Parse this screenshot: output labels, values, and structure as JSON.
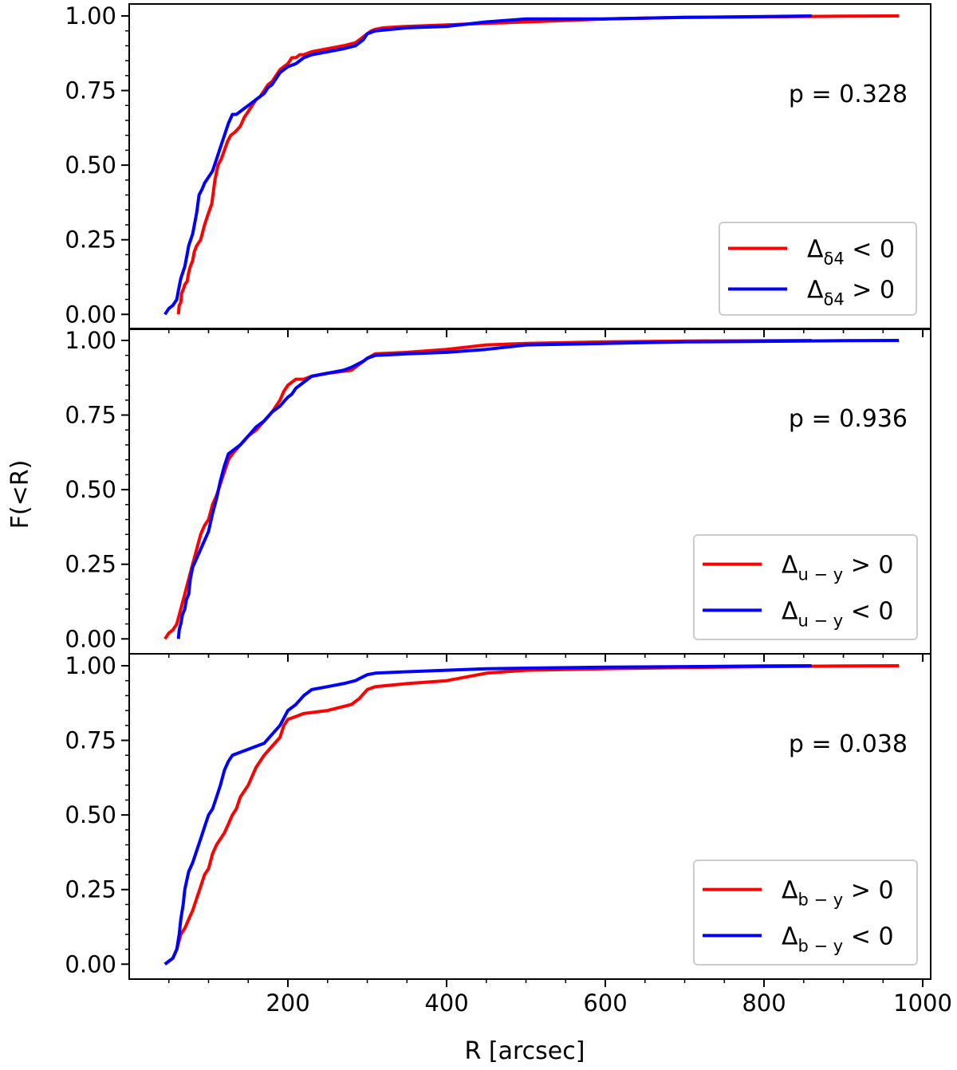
{
  "chart_data": {
    "type": "line",
    "subtype": "cumulative-distribution",
    "xlabel": "R [arcsec]",
    "ylabel": "F(<R)",
    "xlim": [
      0,
      1010
    ],
    "ylim": [
      -0.05,
      1.04
    ],
    "xticks": [
      200,
      400,
      600,
      800,
      1000
    ],
    "xtick_labels": [
      "200",
      "400",
      "600",
      "800",
      "1000"
    ],
    "yticks": [
      0.0,
      0.25,
      0.5,
      0.75,
      1.0
    ],
    "ytick_labels": [
      "0.00",
      "0.25",
      "0.50",
      "0.75",
      "1.00"
    ],
    "panels": [
      {
        "annotation": "p = 0.328",
        "legend": {
          "position": "lower-right",
          "order": [
            "red",
            "blue"
          ]
        },
        "series": [
          {
            "name": "Δδ4 < 0",
            "legend_main": "Δ",
            "legend_sub": "δ4",
            "legend_rel": " < 0",
            "color": "#ff0000",
            "x": [
              62,
              63,
              65,
              66,
              69,
              70,
              73,
              75,
              77,
              80,
              82,
              85,
              90,
              95,
              100,
              104,
              108,
              112,
              116,
              120,
              124,
              128,
              133,
              140,
              145,
              150,
              155,
              160,
              165,
              170,
              175,
              180,
              185,
              190,
              195,
              200,
              205,
              210,
              215,
              220,
              230,
              250,
              270,
              285,
              295,
              300,
              305,
              310,
              320,
              350,
              400,
              450,
              500,
              600,
              700,
              800,
              900,
              970
            ],
            "y": [
              0.0,
              0.03,
              0.04,
              0.07,
              0.09,
              0.1,
              0.11,
              0.14,
              0.16,
              0.18,
              0.21,
              0.23,
              0.25,
              0.3,
              0.34,
              0.37,
              0.45,
              0.5,
              0.52,
              0.55,
              0.58,
              0.6,
              0.61,
              0.63,
              0.66,
              0.68,
              0.7,
              0.72,
              0.73,
              0.75,
              0.77,
              0.78,
              0.8,
              0.82,
              0.83,
              0.84,
              0.86,
              0.86,
              0.87,
              0.87,
              0.88,
              0.89,
              0.9,
              0.91,
              0.93,
              0.94,
              0.95,
              0.955,
              0.96,
              0.965,
              0.97,
              0.975,
              0.98,
              0.99,
              0.995,
              0.997,
              0.999,
              1.0
            ]
          },
          {
            "name": "Δδ4 > 0",
            "legend_main": "Δ",
            "legend_sub": "δ4",
            "legend_rel": " > 0",
            "color": "#0000ff",
            "x": [
              45,
              50,
              55,
              60,
              62,
              65,
              70,
              73,
              75,
              80,
              85,
              88,
              92,
              95,
              100,
              105,
              110,
              115,
              120,
              125,
              130,
              135,
              140,
              145,
              150,
              160,
              170,
              175,
              180,
              185,
              190,
              195,
              200,
              210,
              220,
              230,
              250,
              270,
              285,
              295,
              300,
              310,
              350,
              400,
              450,
              500,
              600,
              700,
              800,
              860
            ],
            "y": [
              0.0,
              0.02,
              0.03,
              0.05,
              0.08,
              0.12,
              0.16,
              0.2,
              0.23,
              0.27,
              0.34,
              0.4,
              0.42,
              0.44,
              0.46,
              0.48,
              0.52,
              0.56,
              0.6,
              0.64,
              0.67,
              0.67,
              0.68,
              0.69,
              0.7,
              0.72,
              0.74,
              0.76,
              0.77,
              0.79,
              0.81,
              0.82,
              0.83,
              0.84,
              0.86,
              0.87,
              0.88,
              0.89,
              0.9,
              0.92,
              0.94,
              0.95,
              0.96,
              0.965,
              0.98,
              0.99,
              0.99,
              0.995,
              0.998,
              1.0
            ]
          }
        ]
      },
      {
        "annotation": "p = 0.936",
        "legend": {
          "position": "lower-right",
          "order": [
            "red",
            "blue"
          ]
        },
        "series": [
          {
            "name": "Δu−y > 0",
            "legend_main": "Δ",
            "legend_sub": "u − y",
            "legend_rel": " > 0",
            "color": "#ff0000",
            "x": [
              45,
              50,
              55,
              60,
              65,
              70,
              75,
              80,
              85,
              90,
              95,
              100,
              105,
              110,
              115,
              120,
              125,
              130,
              140,
              150,
              160,
              170,
              180,
              185,
              190,
              195,
              200,
              205,
              210,
              220,
              230,
              250,
              280,
              300,
              310,
              350,
              400,
              450,
              500,
              600,
              700,
              860
            ],
            "y": [
              0.0,
              0.02,
              0.03,
              0.05,
              0.1,
              0.15,
              0.2,
              0.25,
              0.3,
              0.35,
              0.38,
              0.4,
              0.45,
              0.48,
              0.52,
              0.56,
              0.6,
              0.62,
              0.65,
              0.68,
              0.7,
              0.73,
              0.76,
              0.78,
              0.8,
              0.83,
              0.85,
              0.86,
              0.87,
              0.87,
              0.88,
              0.89,
              0.9,
              0.94,
              0.955,
              0.96,
              0.97,
              0.985,
              0.99,
              0.995,
              0.998,
              1.0
            ]
          },
          {
            "name": "Δu−y < 0",
            "legend_main": "Δ",
            "legend_sub": "u − y",
            "legend_rel": " < 0",
            "color": "#0000ff",
            "x": [
              62,
              63,
              65,
              67,
              70,
              72,
              75,
              77,
              80,
              85,
              90,
              95,
              100,
              105,
              110,
              115,
              120,
              125,
              130,
              140,
              150,
              160,
              170,
              180,
              190,
              200,
              205,
              210,
              220,
              230,
              250,
              270,
              280,
              295,
              300,
              310,
              350,
              400,
              450,
              500,
              600,
              700,
              800,
              900,
              970
            ],
            "y": [
              0.0,
              0.03,
              0.05,
              0.08,
              0.1,
              0.13,
              0.15,
              0.2,
              0.24,
              0.27,
              0.3,
              0.33,
              0.36,
              0.42,
              0.47,
              0.53,
              0.58,
              0.62,
              0.63,
              0.65,
              0.68,
              0.71,
              0.73,
              0.76,
              0.78,
              0.81,
              0.82,
              0.84,
              0.86,
              0.88,
              0.89,
              0.9,
              0.91,
              0.93,
              0.94,
              0.95,
              0.955,
              0.96,
              0.97,
              0.985,
              0.99,
              0.995,
              0.997,
              0.999,
              1.0
            ]
          }
        ]
      },
      {
        "annotation": "p = 0.038",
        "legend": {
          "position": "lower-right",
          "order": [
            "red",
            "blue"
          ]
        },
        "series": [
          {
            "name": "Δb−y > 0",
            "legend_main": "Δ",
            "legend_sub": "b − y",
            "legend_rel": " > 0",
            "color": "#ff0000",
            "x": [
              45,
              50,
              55,
              60,
              65,
              70,
              75,
              80,
              85,
              90,
              95,
              100,
              105,
              110,
              115,
              120,
              125,
              130,
              135,
              140,
              145,
              150,
              155,
              160,
              170,
              180,
              190,
              195,
              200,
              210,
              220,
              250,
              280,
              290,
              300,
              310,
              350,
              400,
              450,
              500,
              600,
              700,
              800,
              900,
              970
            ],
            "y": [
              0.0,
              0.01,
              0.02,
              0.05,
              0.1,
              0.12,
              0.15,
              0.18,
              0.22,
              0.26,
              0.3,
              0.32,
              0.37,
              0.4,
              0.42,
              0.44,
              0.47,
              0.5,
              0.52,
              0.56,
              0.58,
              0.6,
              0.63,
              0.66,
              0.7,
              0.73,
              0.76,
              0.8,
              0.82,
              0.83,
              0.84,
              0.85,
              0.87,
              0.89,
              0.92,
              0.93,
              0.94,
              0.95,
              0.975,
              0.985,
              0.99,
              0.994,
              0.997,
              0.999,
              1.0
            ]
          },
          {
            "name": "Δb−y < 0",
            "legend_main": "Δ",
            "legend_sub": "b − y",
            "legend_rel": " < 0",
            "color": "#0000ff",
            "x": [
              45,
              50,
              55,
              60,
              63,
              65,
              68,
              70,
              75,
              80,
              85,
              90,
              95,
              100,
              105,
              110,
              115,
              120,
              125,
              130,
              140,
              150,
              160,
              170,
              180,
              190,
              200,
              210,
              220,
              230,
              250,
              270,
              285,
              300,
              310,
              350,
              400,
              450,
              500,
              600,
              700,
              800,
              860
            ],
            "y": [
              0.0,
              0.01,
              0.02,
              0.05,
              0.1,
              0.15,
              0.2,
              0.25,
              0.31,
              0.34,
              0.38,
              0.42,
              0.46,
              0.5,
              0.52,
              0.56,
              0.6,
              0.65,
              0.68,
              0.7,
              0.71,
              0.72,
              0.73,
              0.74,
              0.77,
              0.8,
              0.85,
              0.87,
              0.9,
              0.92,
              0.93,
              0.94,
              0.95,
              0.97,
              0.975,
              0.98,
              0.985,
              0.99,
              0.992,
              0.995,
              0.997,
              0.999,
              1.0
            ]
          }
        ]
      }
    ]
  }
}
